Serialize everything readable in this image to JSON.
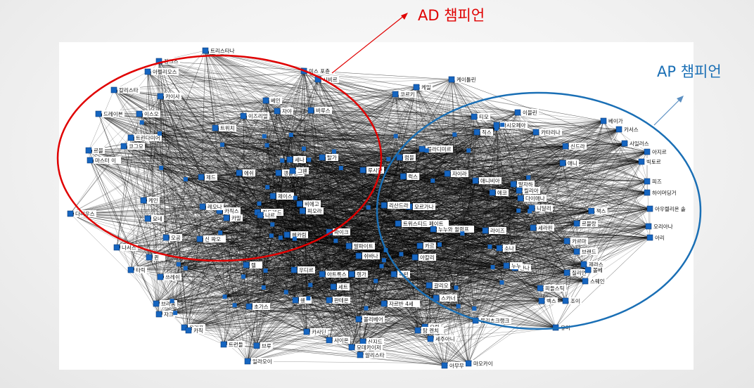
{
  "callouts": {
    "ad": {
      "label": "AD 챔피언",
      "color": "#e00000"
    },
    "ap": {
      "label": "AP 챔피언",
      "color": "#1a6fb5"
    }
  },
  "colors": {
    "node": "#1565c0",
    "edge": "#000000"
  },
  "nodes": [
    {
      "label": "트리스타나",
      "group": "ad"
    },
    {
      "label": "징크스",
      "group": "ad"
    },
    {
      "label": "아펠리오스",
      "group": "ad"
    },
    {
      "label": "칼리스타",
      "group": "ad"
    },
    {
      "label": "카이사",
      "group": "ad"
    },
    {
      "label": "미스 포츈",
      "group": "ad"
    },
    {
      "label": "시비르",
      "group": "ad"
    },
    {
      "label": "케일",
      "group": "ad"
    },
    {
      "label": "코르키",
      "group": "ad"
    },
    {
      "label": "티모",
      "group": "ap"
    },
    {
      "label": "케이틀린",
      "group": "ad"
    },
    {
      "label": "베인",
      "group": "ad"
    },
    {
      "label": "트위치",
      "group": "ad"
    },
    {
      "label": "이즈리얼",
      "group": "ad"
    },
    {
      "label": "자야",
      "group": "ad"
    },
    {
      "label": "바루스",
      "group": "ad"
    },
    {
      "label": "에쉬",
      "group": "ad"
    },
    {
      "label": "이스오",
      "group": "ad"
    },
    {
      "label": "드레이븐",
      "group": "ad"
    },
    {
      "label": "트린다미어",
      "group": "ad"
    },
    {
      "label": "코그모",
      "group": "ad"
    },
    {
      "label": "르블",
      "group": "ad"
    },
    {
      "label": "마스터 이",
      "group": "ad"
    },
    {
      "label": "제드",
      "group": "ad"
    },
    {
      "label": "세나",
      "group": "ad"
    },
    {
      "label": "탈가",
      "group": "ad"
    },
    {
      "label": "갱플랭크",
      "group": "ad"
    },
    {
      "label": "그웬",
      "group": "ad"
    },
    {
      "label": "루시안",
      "group": "ad"
    },
    {
      "label": "케인",
      "group": "ad"
    },
    {
      "label": "제이스",
      "group": "ad"
    },
    {
      "label": "카직스",
      "group": "ad"
    },
    {
      "label": "킨드레드",
      "group": "ad"
    },
    {
      "label": "비에고",
      "group": "ad"
    },
    {
      "label": "피오라",
      "group": "ad"
    },
    {
      "label": "요네",
      "group": "ad"
    },
    {
      "label": "카밀",
      "group": "ad"
    },
    {
      "label": "오공",
      "group": "ad"
    },
    {
      "label": "신 짜오",
      "group": "ad"
    },
    {
      "label": "헤카림",
      "group": "ad"
    },
    {
      "label": "파이크",
      "group": "ad"
    },
    {
      "label": "다리우스",
      "group": "ad"
    },
    {
      "label": "퀸",
      "group": "ad"
    },
    {
      "label": "이블린",
      "group": "ap"
    },
    {
      "label": "베이가",
      "group": "ap"
    },
    {
      "label": "카시오페아",
      "group": "ap"
    },
    {
      "label": "카서스",
      "group": "ap"
    },
    {
      "label": "직스",
      "group": "ap"
    },
    {
      "label": "카타리나",
      "group": "ap"
    },
    {
      "label": "블라디미르",
      "group": "ap"
    },
    {
      "label": "럼블",
      "group": "ap"
    },
    {
      "label": "신드라",
      "group": "ap"
    },
    {
      "label": "사일러스",
      "group": "ap"
    },
    {
      "label": "아지르",
      "group": "ap"
    },
    {
      "label": "빅토르",
      "group": "ap"
    },
    {
      "label": "애니",
      "group": "ap"
    },
    {
      "label": "피즈",
      "group": "ap"
    },
    {
      "label": "하이머딩거",
      "group": "ap"
    },
    {
      "label": "아우렐리온 솔",
      "group": "ap"
    },
    {
      "label": "오리아나",
      "group": "ap"
    },
    {
      "label": "아리",
      "group": "ap"
    },
    {
      "label": "르블랑",
      "group": "ap"
    },
    {
      "label": "애니비아",
      "group": "ap"
    },
    {
      "label": "자이라",
      "group": "ap"
    },
    {
      "label": "말자하",
      "group": "ap"
    },
    {
      "label": "릴리아",
      "group": "ap"
    },
    {
      "label": "다이애나",
      "group": "ap"
    },
    {
      "label": "에코",
      "group": "ap"
    },
    {
      "label": "니달리",
      "group": "ap"
    },
    {
      "label": "모르가나",
      "group": "ap"
    },
    {
      "label": "트위스티드 페이트",
      "group": "ap"
    },
    {
      "label": "누누와 윌럼프",
      "group": "ap"
    },
    {
      "label": "라이즈",
      "group": "ap"
    },
    {
      "label": "세라핀",
      "group": "ap"
    },
    {
      "label": "소나",
      "group": "ap"
    },
    {
      "label": "잔나",
      "group": "ap"
    },
    {
      "label": "카르마",
      "group": "ap"
    },
    {
      "label": "브랜드",
      "group": "ap"
    },
    {
      "label": "질리언",
      "group": "ap"
    },
    {
      "label": "제라스",
      "group": "ap"
    },
    {
      "label": "스웨인",
      "group": "ap"
    },
    {
      "label": "피들스틱",
      "group": "ap"
    },
    {
      "label": "벡스",
      "group": "ap"
    },
    {
      "label": "조이",
      "group": "ap"
    },
    {
      "label": "유미",
      "group": "ap"
    },
    {
      "label": "리산드라",
      "group": "ap"
    },
    {
      "label": "아칼리",
      "group": "ap"
    },
    {
      "label": "쉬바나",
      "group": "ap"
    },
    {
      "label": "갈리오",
      "group": "ap"
    },
    {
      "label": "스카너",
      "group": "ap"
    },
    {
      "label": "카사딘",
      "group": "ap"
    },
    {
      "label": "말파이트",
      "group": "ap"
    },
    {
      "label": "초가스",
      "group": "ap"
    },
    {
      "label": "브라움",
      "group": "ap"
    },
    {
      "label": "자크",
      "group": "ap"
    },
    {
      "label": "나서스",
      "group": "ad"
    },
    {
      "label": "아트록스",
      "group": "ad"
    },
    {
      "label": "세트",
      "group": "ad"
    },
    {
      "label": "판테온",
      "group": "ad"
    },
    {
      "label": "자르반 4세",
      "group": "ad"
    },
    {
      "label": "우디르",
      "group": "ap"
    },
    {
      "label": "타릭",
      "group": "ap"
    },
    {
      "label": "트런들",
      "group": "ad"
    },
    {
      "label": "올라프",
      "group": "ad"
    },
    {
      "label": "일라오이",
      "group": "ad"
    },
    {
      "label": "요릭",
      "group": "ad"
    },
    {
      "label": "사이온",
      "group": "ad"
    },
    {
      "label": "신지드",
      "group": "ap"
    },
    {
      "label": "알리스타",
      "group": "ap"
    },
    {
      "label": "마오카이",
      "group": "ap"
    },
    {
      "label": "아무무",
      "group": "ap"
    },
    {
      "label": "블리츠크랭크",
      "group": "ap"
    },
    {
      "label": "쓰레쉬",
      "group": "ap"
    },
    {
      "label": "레오나",
      "group": "ap"
    },
    {
      "label": "나르",
      "group": "ad"
    },
    {
      "label": "렝가",
      "group": "ad"
    },
    {
      "label": "카직",
      "group": "ad"
    },
    {
      "label": "쉔",
      "group": "ad"
    },
    {
      "label": "렐",
      "group": "ap"
    },
    {
      "label": "녹턴",
      "group": "ad"
    },
    {
      "label": "탐 켄치",
      "group": "ap"
    },
    {
      "label": "세주아니",
      "group": "ap"
    },
    {
      "label": "볼리베어",
      "group": "ad"
    },
    {
      "label": "볼베",
      "group": "ad"
    },
    {
      "label": "누누",
      "group": "ap"
    },
    {
      "label": "모데카이저",
      "group": "ap"
    },
    {
      "label": "잭스",
      "group": "ad"
    },
    {
      "label": "럭스",
      "group": "ap"
    },
    {
      "label": "카르",
      "group": "ap"
    },
    {
      "label": "브루",
      "group": "ap"
    }
  ]
}
